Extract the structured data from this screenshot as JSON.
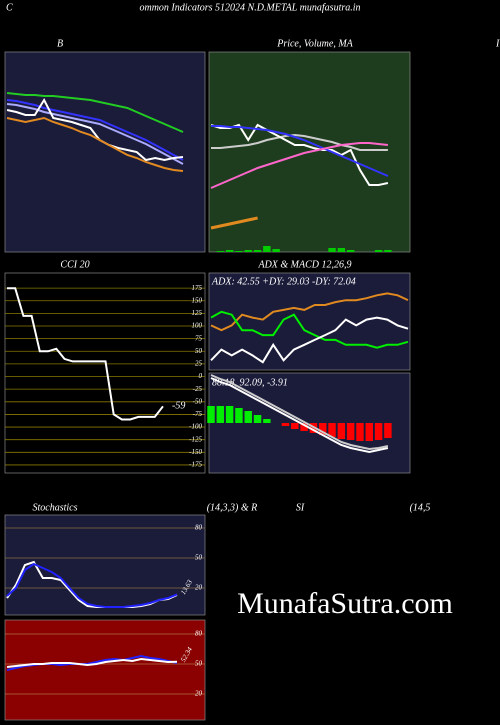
{
  "header": {
    "left": "C",
    "title": "ommon  Indicators 512024  N.D.METAL munafasutra.in",
    "right": "I"
  },
  "watermark": "MunafaSutra.com",
  "chart_data": [
    {
      "type": "line",
      "title": "B",
      "ylim": [
        0,
        100
      ],
      "series": [
        {
          "color": "#22cc22",
          "values": [
            79.5,
            79,
            78.5,
            78.5,
            78,
            78,
            77.5,
            77,
            76.5,
            76,
            75,
            74,
            73,
            72,
            70,
            68,
            66,
            64,
            62,
            60
          ]
        },
        {
          "color": "#3333ff",
          "values": [
            76,
            75.5,
            74.5,
            73.5,
            72,
            71,
            70,
            69,
            68,
            67,
            66,
            64,
            62,
            60,
            58,
            56,
            53.5,
            51,
            48.5,
            46
          ]
        },
        {
          "color": "#aaaaff",
          "values": [
            74,
            73.5,
            72.5,
            71.5,
            70,
            69,
            68,
            67,
            66,
            65,
            64,
            62,
            60,
            58,
            56,
            54,
            51.5,
            49,
            46.5,
            44
          ]
        },
        {
          "color": "#ffffff",
          "values": [
            71,
            70,
            68.5,
            68.5,
            76,
            67,
            66,
            65,
            63.5,
            62,
            56,
            53.5,
            52,
            51,
            50,
            46,
            47,
            46,
            47,
            47.5
          ]
        },
        {
          "color": "#e08a20",
          "values": [
            67,
            66,
            65,
            66,
            67,
            65,
            63.5,
            62,
            60,
            58.5,
            56,
            53.5,
            51,
            48.5,
            47,
            45,
            43.5,
            42,
            41,
            40.5
          ]
        }
      ]
    },
    {
      "type": "line",
      "title": "Price, Volume, MA",
      "ylim": [
        0,
        100
      ],
      "series": [
        {
          "color": "#00cc00",
          "type": "bar",
          "values": [
            0,
            0.5,
            1,
            0.5,
            1,
            1,
            3,
            1.5,
            0,
            0,
            0,
            0,
            0,
            2,
            2,
            1,
            0,
            0,
            1,
            1
          ]
        },
        {
          "color": "#e08a20",
          "values": [
            12,
            13,
            14,
            15,
            16,
            17,
            null,
            null,
            null,
            null,
            null,
            null,
            null,
            null,
            null,
            null,
            null,
            null,
            null,
            null
          ]
        },
        {
          "color": "#cccccc",
          "values": [
            52,
            52,
            52.5,
            53,
            53.5,
            54.5,
            56,
            57,
            58,
            58.5,
            58,
            57,
            56,
            55,
            53.5,
            52.5,
            51,
            51,
            51,
            51
          ]
        },
        {
          "color": "#ffffff",
          "values": [
            63.5,
            62,
            62,
            63.5,
            56,
            63.5,
            61,
            58.5,
            56,
            53.5,
            53.5,
            52,
            51,
            51,
            48.5,
            51,
            41,
            33.5,
            33.5,
            34.5
          ]
        },
        {
          "color": "#3333ff",
          "values": [
            63,
            63,
            62.5,
            62.5,
            62,
            61.5,
            61,
            60,
            59,
            57.5,
            56,
            54,
            52,
            50,
            48,
            46,
            44,
            42,
            40,
            38
          ]
        },
        {
          "color": "#ff66cc",
          "values": [
            32,
            34,
            36,
            38,
            40,
            42,
            43.5,
            45,
            46.5,
            48,
            49.5,
            50.5,
            51.5,
            52.5,
            53.5,
            54,
            54.5,
            54.5,
            54,
            53.5
          ]
        }
      ]
    },
    {
      "type": "line",
      "title": "CCI 20",
      "ylim": [
        -191,
        205
      ],
      "grid": true,
      "yticks": [
        175,
        150,
        125,
        100,
        75,
        50,
        25,
        0,
        -25,
        -50,
        -75,
        -100,
        -125,
        -150,
        -175
      ],
      "series": [
        {
          "color": "#ffffff",
          "values": [
            175,
            175,
            120,
            120,
            50,
            50,
            55,
            35,
            30,
            30,
            30,
            30,
            30,
            -75,
            -85,
            -85,
            -80,
            -80,
            -80,
            -59
          ]
        }
      ]
    },
    {
      "type": "line",
      "title": "ADX  & MACD 12,26,9",
      "subtitle": "ADX: 42.55 +DY: 29.03 -DY: 72.04",
      "ylim": [
        0,
        100
      ],
      "series": [
        {
          "color": "#e08a20",
          "values": [
            46,
            41,
            46,
            57,
            54,
            52,
            60,
            62,
            64,
            62,
            67,
            67,
            70,
            72,
            72,
            74,
            77,
            79,
            77,
            72.04
          ]
        },
        {
          "color": "#00ee00",
          "values": [
            54,
            60,
            57,
            41,
            41,
            36,
            36,
            52,
            57,
            41,
            36,
            31,
            31,
            26,
            26,
            26,
            23,
            26,
            26,
            29.03
          ]
        },
        {
          "color": "#ffffff",
          "values": [
            10,
            21,
            15,
            21,
            15,
            8,
            26,
            10,
            21,
            26,
            31,
            36,
            41,
            52,
            46,
            52,
            54,
            52,
            46,
            42.55
          ]
        }
      ]
    },
    {
      "type": "line",
      "subtitle": "88.18, 92.09, -3.91",
      "ylim": [
        -50,
        50
      ],
      "series": [
        {
          "color": "#00ee00",
          "type": "bar",
          "values": [
            17,
            17,
            17,
            15,
            12,
            8,
            4,
            null,
            null,
            null,
            null,
            null,
            null,
            null,
            null,
            null,
            null,
            null,
            null,
            null
          ]
        },
        {
          "color": "#ff0000",
          "type": "bar",
          "values": [
            null,
            null,
            null,
            null,
            null,
            null,
            null,
            null,
            -3,
            -6,
            -8,
            -10,
            -12,
            -14,
            -16,
            -17,
            -18,
            -18,
            -17,
            -15
          ]
        },
        {
          "color": "#ffffff",
          "values": [
            45,
            41,
            38,
            33,
            28,
            23,
            18,
            13,
            8,
            3,
            -2,
            -7,
            -12,
            -17,
            -22,
            -25,
            -27,
            -29,
            -27,
            -25
          ]
        },
        {
          "color": "#cccccc",
          "values": [
            48,
            44,
            41,
            36,
            31,
            26,
            21,
            16,
            11,
            6,
            1,
            -4,
            -9,
            -14,
            -19,
            -22,
            -24,
            -26,
            -25,
            -23
          ]
        }
      ]
    },
    {
      "type": "line",
      "title": "Stochastics",
      "subtitle": "(14,3,3) & R",
      "ylim": [
        -7,
        93
      ],
      "grid": true,
      "yticks": [
        80,
        50,
        20
      ],
      "series": [
        {
          "color": "#ffffff",
          "values": [
            10,
            23,
            43,
            46,
            30,
            30,
            28,
            18,
            8,
            2,
            1,
            1,
            1,
            1,
            1,
            2,
            4,
            8,
            9,
            13
          ]
        },
        {
          "color": "#2222ff",
          "values": [
            12,
            20,
            38,
            44,
            40,
            36,
            30,
            20,
            10,
            4,
            2,
            1,
            1,
            1,
            2,
            3,
            5,
            8,
            10,
            13.63
          ]
        }
      ]
    },
    {
      "type": "line",
      "title": "SI",
      "subtitle": "(14,5",
      "ylim": [
        -6,
        94
      ],
      "grid": true,
      "yticks": [
        80,
        50,
        20
      ],
      "series": [
        {
          "color": "#2222ff",
          "values": [
            44,
            46,
            48,
            49,
            50,
            50,
            49,
            50,
            50,
            50,
            52,
            54,
            55,
            54,
            56,
            58,
            56,
            55,
            53,
            51
          ]
        },
        {
          "color": "#ffffff",
          "values": [
            47,
            48,
            49,
            50,
            50,
            51,
            51,
            51,
            50,
            49,
            50,
            52,
            53,
            54,
            53,
            55,
            54,
            53,
            52,
            52.34
          ]
        }
      ]
    }
  ]
}
